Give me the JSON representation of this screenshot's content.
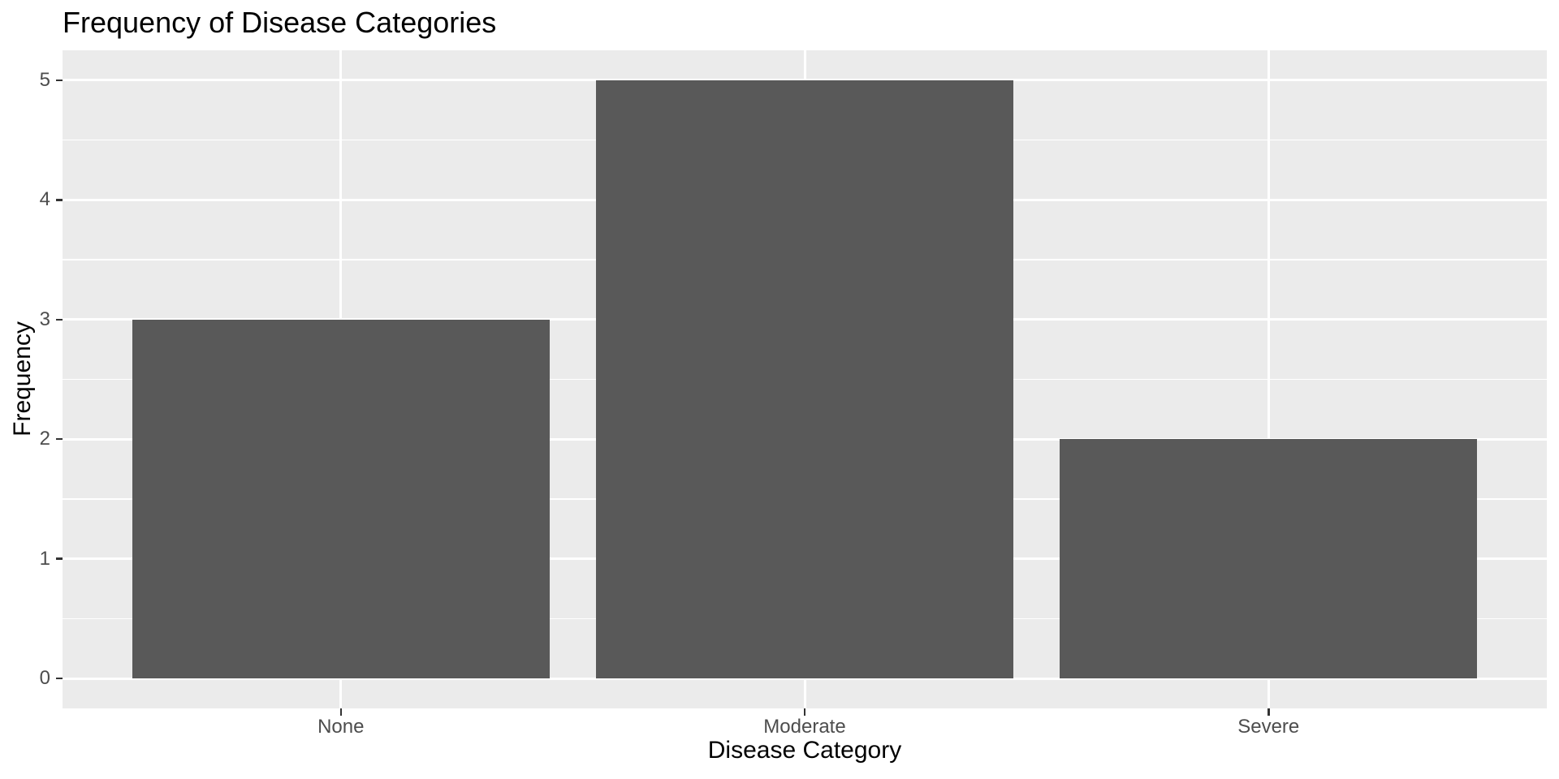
{
  "chart_data": {
    "type": "bar",
    "title": "Frequency of Disease Categories",
    "xlabel": "Disease Category",
    "ylabel": "Frequency",
    "categories": [
      "None",
      "Moderate",
      "Severe"
    ],
    "values": [
      3,
      5,
      2
    ],
    "yticks": [
      0,
      1,
      2,
      3,
      4,
      5
    ],
    "yminor": [
      0.5,
      1.5,
      2.5,
      3.5,
      4.5
    ],
    "ylim": [
      0,
      5
    ],
    "grid": "on",
    "legend": "none",
    "colors": {
      "bar_fill": "#595959",
      "panel_background": "#EBEBEB",
      "gridline": "#FFFFFF",
      "tick_label": "#4D4D4D",
      "tick_mark": "#333333",
      "text": "#000000",
      "background": "#FFFFFF"
    }
  }
}
